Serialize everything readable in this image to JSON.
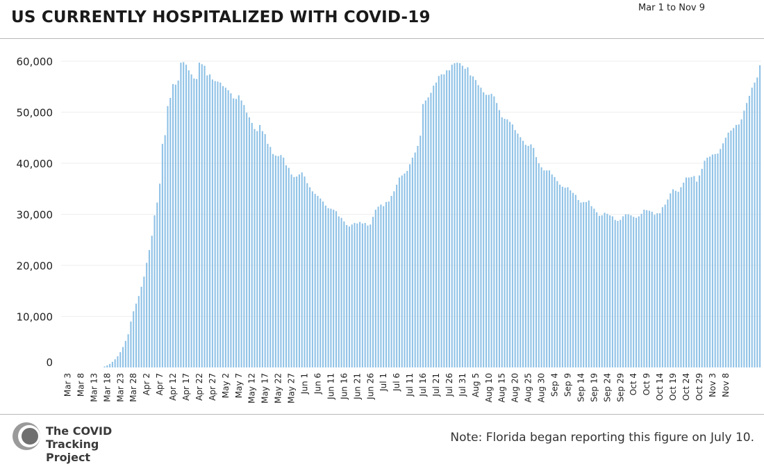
{
  "header": {
    "title": "US CURRENTLY HOSPITALIZED WITH COVID-19",
    "date_range": "Mar 1 to Nov 9"
  },
  "footer": {
    "logo_line1": "The COVID",
    "logo_line2": "Tracking Project",
    "note": "Note: Florida began reporting this figure on July 10."
  },
  "colors": {
    "bar": "#8ec1e6",
    "grid": "#eeeeee",
    "axis_text": "#222222"
  },
  "chart_data": {
    "type": "bar",
    "title": "US CURRENTLY HOSPITALIZED WITH COVID-19",
    "xlabel": "",
    "ylabel": "",
    "ylim": [
      0,
      60000
    ],
    "yticks": [
      "0",
      "10,000",
      "20,000",
      "30,000",
      "40,000",
      "50,000",
      "60,000"
    ],
    "grid": true,
    "legend": "none",
    "x_start": "Mar 1",
    "x_end": "Nov 9",
    "xtick_labels": [
      "Mar 3",
      "Mar 8",
      "Mar 13",
      "Mar 18",
      "Mar 23",
      "Mar 28",
      "Apr 2",
      "Apr 7",
      "Apr 12",
      "Apr 17",
      "Apr 22",
      "Apr 27",
      "May 2",
      "May 7",
      "May 12",
      "May 17",
      "May 22",
      "May 27",
      "Jun 1",
      "Jun 6",
      "Jun 11",
      "Jun 16",
      "Jun 21",
      "Jun 26",
      "Jul 1",
      "Jul 6",
      "Jul 11",
      "Jul 16",
      "Jul 21",
      "Jul 26",
      "Jul 31",
      "Aug 5",
      "Aug 10",
      "Aug 15",
      "Aug 20",
      "Aug 25",
      "Aug 30",
      "Sep 4",
      "Sep 9",
      "Sep 14",
      "Sep 19",
      "Sep 24",
      "Sep 29",
      "Oct 4",
      "Oct 9",
      "Oct 14",
      "Oct 19",
      "Oct 24",
      "Oct 29",
      "Nov 3",
      "Nov 8"
    ],
    "values": [
      0,
      0,
      0,
      0,
      0,
      0,
      0,
      0,
      0,
      0,
      0,
      0,
      0,
      0,
      0,
      0,
      200,
      400,
      700,
      1100,
      1600,
      2200,
      3000,
      4000,
      5200,
      6500,
      9000,
      11000,
      12500,
      14000,
      15800,
      17800,
      20500,
      23000,
      25800,
      29800,
      32300,
      36000,
      43800,
      45500,
      51200,
      52800,
      55500,
      55400,
      56200,
      59700,
      59800,
      59300,
      58200,
      57400,
      56600,
      56500,
      59700,
      59400,
      59100,
      57200,
      57400,
      56400,
      56100,
      56000,
      55800,
      55100,
      54800,
      54300,
      53700,
      52700,
      52600,
      53300,
      52300,
      51400,
      49900,
      49000,
      47900,
      46700,
      46300,
      47500,
      46300,
      45700,
      43800,
      43200,
      41800,
      41500,
      41400,
      41600,
      41100,
      39600,
      39100,
      37800,
      37300,
      37400,
      37800,
      38200,
      37400,
      36100,
      35300,
      34500,
      34000,
      33600,
      33100,
      32500,
      31700,
      31200,
      31100,
      30900,
      30600,
      29600,
      29300,
      28600,
      27900,
      27600,
      28000,
      28300,
      28200,
      28500,
      28200,
      28300,
      27800,
      28000,
      29500,
      30900,
      31500,
      31900,
      31600,
      32400,
      32500,
      33600,
      34500,
      35800,
      37200,
      37600,
      38000,
      38500,
      39800,
      41100,
      42100,
      43400,
      45400,
      51600,
      52300,
      52900,
      53800,
      55200,
      55800,
      57100,
      57400,
      57400,
      58200,
      58200,
      59300,
      59600,
      59700,
      59600,
      59100,
      58500,
      58800,
      57200,
      57000,
      56300,
      55300,
      54800,
      53900,
      53400,
      53400,
      53600,
      53100,
      51800,
      50400,
      49000,
      48700,
      48600,
      48100,
      47600,
      46500,
      45800,
      45100,
      44400,
      43600,
      43400,
      43700,
      43000,
      41200,
      40000,
      39200,
      38600,
      38600,
      38600,
      37800,
      37300,
      36500,
      35800,
      35400,
      35200,
      35300,
      34700,
      34200,
      33800,
      32800,
      32300,
      32400,
      32400,
      32700,
      31600,
      31100,
      30400,
      29700,
      29800,
      30300,
      30100,
      29800,
      29600,
      28900,
      28700,
      28900,
      29600,
      30000,
      30000,
      29800,
      29500,
      29300,
      29600,
      30100,
      30900,
      30800,
      30700,
      30500,
      29900,
      30200,
      30200,
      31400,
      31900,
      32900,
      34100,
      34900,
      34600,
      34400,
      35300,
      36200,
      37200,
      37200,
      37300,
      37500,
      36400,
      37600,
      38900,
      40500,
      41100,
      41300,
      41700,
      41800,
      41900,
      42800,
      43900,
      45000,
      46000,
      46400,
      46900,
      47500,
      47600,
      48600,
      50300,
      51800,
      53200,
      54800,
      55800,
      56800,
      59200
    ]
  }
}
